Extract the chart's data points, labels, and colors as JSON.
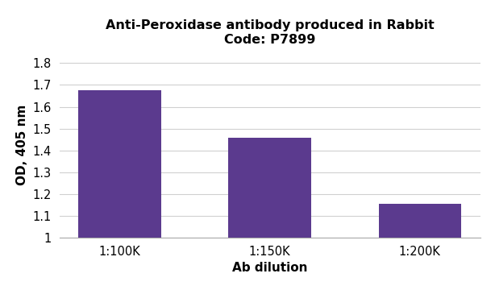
{
  "title_line1": "Anti-Peroxidase antibody produced in Rabbit",
  "title_line2": "Code: P7899",
  "categories": [
    "1:100K",
    "1:150K",
    "1:200K"
  ],
  "values": [
    1.675,
    1.46,
    1.155
  ],
  "bar_color": "#5b3a8e",
  "xlabel": "Ab dilution",
  "ylabel": "OD, 405 nm",
  "ylim": [
    1.0,
    1.85
  ],
  "yticks": [
    1.0,
    1.1,
    1.2,
    1.3,
    1.4,
    1.5,
    1.6,
    1.7,
    1.8
  ],
  "ytick_labels": [
    "1",
    "1.1",
    "1.2",
    "1.3",
    "1.4",
    "1.5",
    "1.6",
    "1.7",
    "1.8"
  ],
  "bar_width": 0.55,
  "background_color": "#ffffff",
  "grid_color": "#d0d0d0",
  "title_fontsize": 11.5,
  "axis_label_fontsize": 11,
  "tick_fontsize": 10.5
}
